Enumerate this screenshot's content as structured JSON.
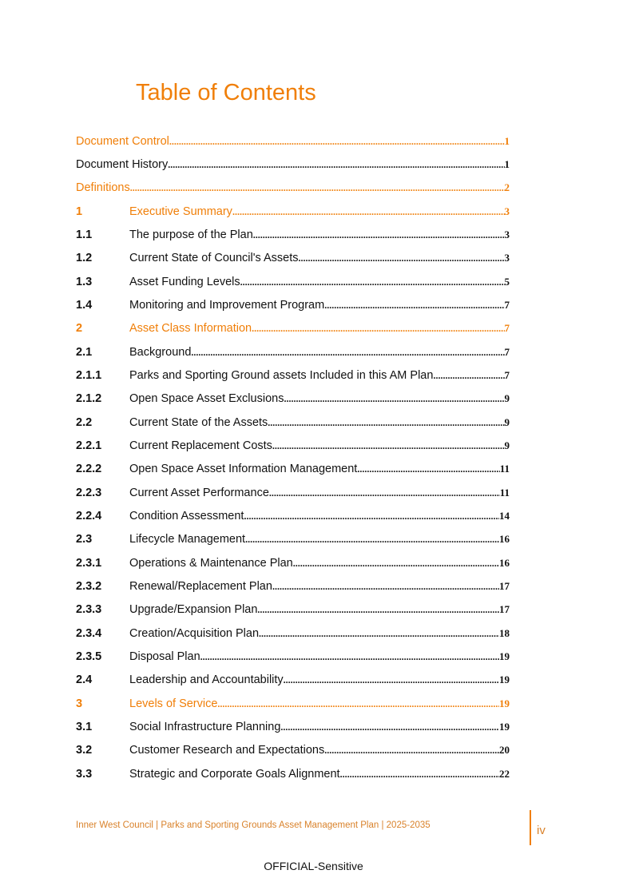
{
  "title": "Table of Contents",
  "entries": [
    {
      "num": "",
      "label": "Document Control",
      "page": "1",
      "orange": true
    },
    {
      "num": "",
      "label": "Document History",
      "page": "1",
      "orange": false
    },
    {
      "num": "",
      "label": "Definitions",
      "page": "2",
      "orange": true
    },
    {
      "num": "1",
      "label": "Executive Summary",
      "page": "3",
      "orange": true
    },
    {
      "num": "1.1",
      "label": "The purpose of the Plan",
      "page": "3",
      "orange": false
    },
    {
      "num": "1.2",
      "label": "Current State of Council's Assets",
      "page": "3",
      "orange": false
    },
    {
      "num": "1.3",
      "label": "Asset Funding Levels",
      "page": "5",
      "orange": false
    },
    {
      "num": "1.4",
      "label": "Monitoring and Improvement Program",
      "page": "7",
      "orange": false
    },
    {
      "num": "2",
      "label": "Asset Class Information",
      "page": "7",
      "orange": true
    },
    {
      "num": "2.1",
      "label": "Background",
      "page": "7",
      "orange": false
    },
    {
      "num": "2.1.1",
      "label": "Parks and Sporting Ground assets Included in this AM Plan",
      "page": "7",
      "orange": false
    },
    {
      "num": "2.1.2",
      "label": "Open Space Asset Exclusions",
      "page": "9",
      "orange": false
    },
    {
      "num": "2.2",
      "label": "Current State of the Assets",
      "page": "9",
      "orange": false
    },
    {
      "num": "2.2.1",
      "label": "Current Replacement Costs",
      "page": "9",
      "orange": false
    },
    {
      "num": "2.2.2",
      "label": "Open Space Asset Information Management",
      "page": "11",
      "orange": false
    },
    {
      "num": "2.2.3",
      "label": "Current Asset Performance",
      "page": "11",
      "orange": false
    },
    {
      "num": "2.2.4",
      "label": "Condition Assessment",
      "page": "14",
      "orange": false
    },
    {
      "num": "2.3",
      "label": "Lifecycle Management",
      "page": "16",
      "orange": false
    },
    {
      "num": "2.3.1",
      "label": "Operations & Maintenance Plan",
      "page": "16",
      "orange": false
    },
    {
      "num": "2.3.2",
      "label": "Renewal/Replacement Plan",
      "page": "17",
      "orange": false
    },
    {
      "num": "2.3.3",
      "label": "Upgrade/Expansion Plan",
      "page": "17",
      "orange": false
    },
    {
      "num": "2.3.4",
      "label": "Creation/Acquisition Plan",
      "page": "18",
      "orange": false
    },
    {
      "num": "2.3.5",
      "label": "Disposal Plan",
      "page": "19",
      "orange": false
    },
    {
      "num": "2.4",
      "label": "Leadership and Accountability",
      "page": "19",
      "orange": false
    },
    {
      "num": "3",
      "label": "Levels of Service",
      "page": "19",
      "orange": true
    },
    {
      "num": "3.1",
      "label": "Social Infrastructure Planning",
      "page": "19",
      "orange": false
    },
    {
      "num": "3.2",
      "label": "Customer Research and Expectations",
      "page": "20",
      "orange": false
    },
    {
      "num": "3.3",
      "label": "Strategic and Corporate Goals Alignment",
      "page": "22",
      "orange": false
    }
  ],
  "footer": {
    "text": "Inner West Council | Parks and Sporting Grounds Asset Management Plan | 2025-2035",
    "page_number": "iv"
  },
  "classification": "OFFICIAL-Sensitive",
  "colors": {
    "accent": "#f07f09",
    "footer": "#d9822b"
  }
}
